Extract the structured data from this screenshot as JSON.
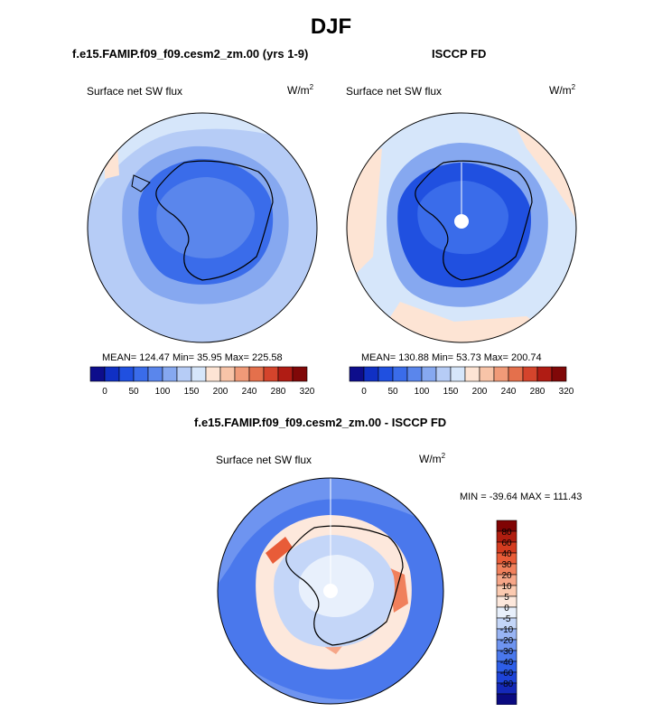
{
  "main_title": "DJF",
  "panels": [
    {
      "title": "f.e15.FAMIP.f09_f09.cesm2_zm.00 (yrs 1-9)",
      "variable": "Surface net SW flux",
      "units_base": "W/m",
      "units_exp": "2",
      "stats_text": "MEAN= 124.47  Min=  35.95  Max= 225.58"
    },
    {
      "title": "ISCCP FD",
      "variable": "Surface net SW flux",
      "units_base": "W/m",
      "units_exp": "2",
      "stats_text": "MEAN= 130.88  Min=  53.73  Max= 200.74"
    },
    {
      "title": "f.e15.FAMIP.f09_f09.cesm2_zm.00 - ISCCP FD",
      "variable": "Surface net SW flux",
      "units_base": "W/m",
      "units_exp": "2",
      "stats_text": "MIN = -39.64 MAX = 111.43"
    }
  ],
  "chart_data": [
    {
      "type": "heatmap",
      "projection": "south-polar-stereographic",
      "title": "f.e15.FAMIP.f09_f09.cesm2_zm.00 (yrs 1-9)",
      "variable": "Surface net SW flux",
      "units": "W/m2",
      "stats": {
        "mean": 124.47,
        "min": 35.95,
        "max": 225.58
      },
      "colorbar": {
        "orientation": "horizontal",
        "colors": [
          "#0d0d8c",
          "#1030c4",
          "#2050e0",
          "#3a6cea",
          "#5a86ec",
          "#86a8f0",
          "#b6ccf6",
          "#d6e6fa",
          "#fde4d4",
          "#f8c4a8",
          "#f09a78",
          "#e4704c",
          "#d4442c",
          "#b01c14",
          "#800808"
        ],
        "tick_labels": [
          "0",
          "50",
          "100",
          "150",
          "200",
          "240",
          "280",
          "320"
        ]
      }
    },
    {
      "type": "heatmap",
      "projection": "south-polar-stereographic",
      "title": "ISCCP FD",
      "variable": "Surface net SW flux",
      "units": "W/m2",
      "stats": {
        "mean": 130.88,
        "min": 53.73,
        "max": 200.74
      },
      "colorbar": {
        "orientation": "horizontal",
        "colors": [
          "#0d0d8c",
          "#1030c4",
          "#2050e0",
          "#3a6cea",
          "#5a86ec",
          "#86a8f0",
          "#b6ccf6",
          "#d6e6fa",
          "#fde4d4",
          "#f8c4a8",
          "#f09a78",
          "#e4704c",
          "#d4442c",
          "#b01c14",
          "#800808"
        ],
        "tick_labels": [
          "0",
          "50",
          "100",
          "150",
          "200",
          "240",
          "280",
          "320"
        ]
      }
    },
    {
      "type": "heatmap",
      "projection": "south-polar-stereographic",
      "title": "f.e15.FAMIP.f09_f09.cesm2_zm.00 - ISCCP FD",
      "variable": "Surface net SW flux",
      "units": "W/m2",
      "stats": {
        "min": -39.64,
        "max": 111.43
      },
      "colorbar": {
        "orientation": "vertical",
        "colors": [
          "#0a0a80",
          "#1428b8",
          "#1e44d8",
          "#2e5ee8",
          "#4a78ec",
          "#6e94f0",
          "#98b4f4",
          "#c4d6f8",
          "#e8f0fc",
          "#fde8dc",
          "#fbcab0",
          "#f6a688",
          "#f0805c",
          "#e85c38",
          "#d43c20",
          "#b01e10",
          "#800404"
        ],
        "tick_labels": [
          "80",
          "60",
          "40",
          "30",
          "20",
          "10",
          "5",
          "0",
          "-5",
          "-10",
          "-20",
          "-30",
          "-40",
          "-60",
          "-80"
        ]
      }
    }
  ]
}
